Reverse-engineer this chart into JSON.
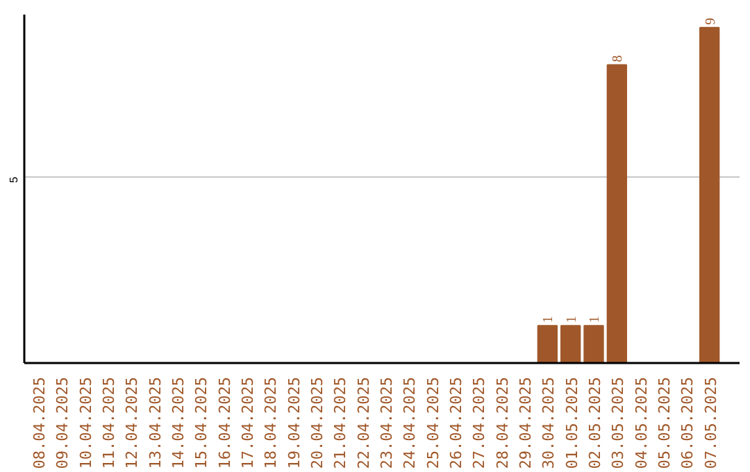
{
  "chart_data": {
    "type": "bar",
    "categories": [
      "08.04.2025",
      "09.04.2025",
      "10.04.2025",
      "11.04.2025",
      "12.04.2025",
      "13.04.2025",
      "14.04.2025",
      "15.04.2025",
      "16.04.2025",
      "17.04.2025",
      "18.04.2025",
      "19.04.2025",
      "20.04.2025",
      "21.04.2025",
      "22.04.2025",
      "23.04.2025",
      "24.04.2025",
      "25.04.2025",
      "26.04.2025",
      "27.04.2025",
      "28.04.2025",
      "29.04.2025",
      "30.04.2025",
      "01.05.2025",
      "02.05.2025",
      "03.05.2025",
      "04.05.2025",
      "05.05.2025",
      "06.05.2025",
      "07.05.2025"
    ],
    "values": [
      null,
      null,
      null,
      null,
      null,
      null,
      null,
      null,
      null,
      null,
      null,
      null,
      null,
      null,
      null,
      null,
      null,
      null,
      null,
      null,
      null,
      null,
      1,
      1,
      1,
      8,
      null,
      null,
      null,
      9
    ],
    "data_labels": true,
    "color": "#a0582a",
    "ylim": [
      0,
      9.35
    ],
    "yticks": [
      5
    ],
    "grid": "y"
  }
}
